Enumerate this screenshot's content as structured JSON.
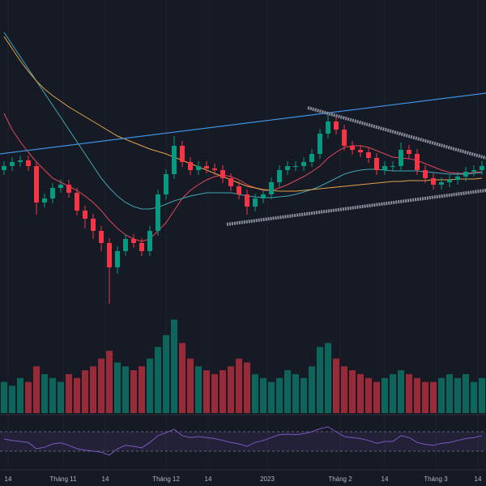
{
  "chart_data": {
    "type": "candlestick",
    "up_color": "#089981",
    "down_color": "#f23645",
    "open": [
      390,
      395,
      400,
      402,
      395,
      350,
      355,
      368,
      372,
      362,
      340,
      330,
      315,
      300,
      270,
      290,
      305,
      300,
      290,
      315,
      360,
      385,
      420,
      400,
      390,
      395,
      392,
      390,
      380,
      370,
      360,
      345,
      355,
      360,
      375,
      390,
      395,
      395,
      400,
      410,
      435,
      450,
      440,
      420,
      415,
      412,
      405,
      390,
      395,
      395,
      415,
      410,
      390,
      380,
      372,
      375,
      378,
      382,
      388,
      390
    ],
    "high": [
      401,
      406,
      408,
      408,
      401,
      361,
      374,
      378,
      378,
      368,
      346,
      336,
      321,
      306,
      296,
      311,
      311,
      306,
      321,
      366,
      391,
      432,
      426,
      406,
      401,
      401,
      398,
      396,
      386,
      376,
      366,
      361,
      366,
      381,
      396,
      401,
      401,
      406,
      416,
      441,
      458,
      456,
      446,
      426,
      421,
      418,
      411,
      401,
      401,
      424,
      421,
      416,
      396,
      386,
      381,
      384,
      388,
      394,
      396,
      401
    ],
    "low": [
      384,
      389,
      394,
      389,
      335,
      344,
      349,
      362,
      356,
      334,
      318,
      305,
      290,
      225,
      262,
      284,
      294,
      284,
      284,
      309,
      354,
      379,
      394,
      384,
      384,
      386,
      384,
      374,
      364,
      354,
      335,
      339,
      349,
      354,
      369,
      384,
      389,
      389,
      394,
      404,
      429,
      434,
      414,
      409,
      406,
      399,
      384,
      384,
      389,
      389,
      404,
      384,
      374,
      366,
      366,
      369,
      372,
      376,
      382,
      384
    ],
    "close": [
      395,
      400,
      402,
      395,
      350,
      355,
      368,
      372,
      362,
      340,
      330,
      315,
      300,
      270,
      290,
      305,
      300,
      290,
      315,
      360,
      385,
      420,
      400,
      390,
      395,
      392,
      390,
      380,
      370,
      360,
      345,
      355,
      360,
      375,
      390,
      395,
      395,
      400,
      410,
      435,
      450,
      440,
      420,
      415,
      412,
      405,
      390,
      395,
      395,
      415,
      410,
      390,
      380,
      372,
      375,
      378,
      382,
      388,
      390,
      395
    ],
    "ylim": [
      220,
      600
    ],
    "moving_averages": [
      {
        "color": "#e0475b",
        "values": [
          460,
          440,
          425,
          412,
          400,
          390,
          380,
          375,
          370,
          365,
          358,
          350,
          340,
          328,
          318,
          310,
          305,
          302,
          305,
          315,
          325,
          340,
          355,
          365,
          372,
          378,
          382,
          384,
          382,
          378,
          372,
          368,
          365,
          365,
          368,
          372,
          377,
          382,
          388,
          395,
          405,
          412,
          418,
          420,
          420,
          418,
          414,
          410,
          406,
          405,
          404,
          402,
          398,
          394,
          390,
          387,
          386,
          386,
          387,
          388
        ]
      },
      {
        "color": "#3fa6b3",
        "values": [
          560,
          545,
          530,
          515,
          500,
          485,
          470,
          455,
          440,
          425,
          410,
          395,
          380,
          368,
          358,
          350,
          345,
          342,
          342,
          344,
          348,
          352,
          355,
          358,
          360,
          362,
          362,
          362,
          362,
          360,
          358,
          357,
          356,
          356,
          357,
          358,
          360,
          363,
          366,
          370,
          375,
          380,
          385,
          388,
          390,
          391,
          391,
          390,
          389,
          389,
          389,
          389,
          388,
          387,
          386,
          385,
          385,
          385,
          386,
          387
        ]
      },
      {
        "color": "#e3a34b",
        "values": [
          555,
          540,
          525,
          512,
          500,
          490,
          482,
          475,
          468,
          462,
          456,
          450,
          444,
          438,
          432,
          428,
          424,
          420,
          416,
          413,
          410,
          406,
          402,
          398,
          394,
          390,
          386,
          382,
          378,
          374,
          370,
          368,
          366,
          365,
          364,
          364,
          364,
          365,
          366,
          367,
          368,
          369,
          370,
          371,
          372,
          373,
          374,
          375,
          376,
          376,
          377,
          377,
          377,
          378,
          378,
          378,
          379,
          379,
          379,
          380
        ]
      }
    ],
    "trend_lines": [
      {
        "color": "#3d8fe0",
        "x": [
          -0.5,
          59.5
        ],
        "values": [
          410,
          485
        ]
      },
      {
        "color": "#8a909c",
        "x": [
          37.5,
          59.5
        ],
        "values": [
          467,
          405
        ]
      },
      {
        "color": "#8a909c",
        "x": [
          27.5,
          59.5
        ],
        "values": [
          323,
          365
        ]
      }
    ],
    "volume": [
      40,
      35,
      45,
      40,
      60,
      50,
      45,
      40,
      50,
      45,
      55,
      60,
      70,
      80,
      65,
      60,
      55,
      60,
      70,
      85,
      100,
      120,
      90,
      70,
      60,
      55,
      50,
      55,
      60,
      70,
      65,
      50,
      45,
      40,
      45,
      55,
      50,
      45,
      60,
      85,
      90,
      70,
      60,
      55,
      50,
      45,
      40,
      45,
      50,
      55,
      50,
      45,
      40,
      40,
      45,
      50,
      45,
      50,
      40,
      45
    ],
    "volume_lim": [
      0,
      130
    ],
    "rsi": [
      55,
      52,
      50,
      48,
      35,
      38,
      45,
      47,
      42,
      35,
      32,
      30,
      28,
      22,
      35,
      42,
      40,
      37,
      48,
      62,
      68,
      75,
      62,
      58,
      60,
      58,
      56,
      52,
      48,
      45,
      40,
      48,
      52,
      58,
      64,
      65,
      64,
      66,
      70,
      76,
      80,
      70,
      60,
      58,
      56,
      52,
      46,
      50,
      50,
      62,
      58,
      48,
      44,
      42,
      46,
      48,
      52,
      56,
      58,
      62
    ],
    "rsi_lim": [
      0,
      100
    ],
    "rsi_levels": [
      70,
      30
    ],
    "rsi_color": "#7e57c2",
    "xlim": [
      -0.5,
      59.5
    ],
    "xticks": [
      {
        "value": 0.5,
        "label": "14"
      },
      {
        "value": 7.3,
        "label": "Tháng 11"
      },
      {
        "value": 12.5,
        "label": "14"
      },
      {
        "value": 20,
        "label": "Tháng 12"
      },
      {
        "value": 25.2,
        "label": "14"
      },
      {
        "value": 32.5,
        "label": "2023"
      },
      {
        "value": 41.5,
        "label": "Tháng 2"
      },
      {
        "value": 47,
        "label": "14"
      },
      {
        "value": 53.3,
        "label": "Tháng 3"
      },
      {
        "value": 58.5,
        "label": "14"
      }
    ],
    "grid": true
  }
}
